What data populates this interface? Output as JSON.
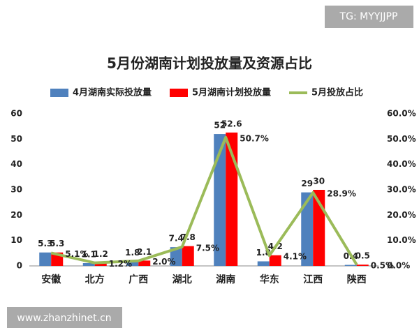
{
  "chart_data": {
    "type": "bar",
    "title": "5月份湖南计划投放量及资源占比",
    "categories": [
      "安徽",
      "北方",
      "广西",
      "湖北",
      "湖南",
      "华东",
      "江西",
      "陕西"
    ],
    "series": [
      {
        "name": "4月湖南实际投放量",
        "color": "#4f81bd",
        "values": [
          5.3,
          1.1,
          1.8,
          7.4,
          52,
          1.8,
          29,
          0.4
        ]
      },
      {
        "name": "5月湖南计划投放量",
        "color": "#ff0000",
        "values": [
          5.3,
          1.2,
          2.1,
          7.8,
          52.6,
          4.2,
          30,
          0.5
        ]
      },
      {
        "name": "5月投放占比",
        "color": "#9bbb59",
        "type": "line",
        "axis": "y2",
        "values": [
          5.1,
          1.2,
          2.0,
          7.5,
          50.7,
          4.1,
          28.9,
          0.5
        ],
        "value_labels": [
          "5.1%",
          "1.2%",
          "2.0%",
          "7.5%",
          "50.7%",
          "4.1%",
          "28.9%",
          "0.5%"
        ]
      }
    ],
    "ylim": [
      0,
      60
    ],
    "yticks": [
      0,
      10,
      20,
      30,
      40,
      50,
      60
    ],
    "y2lim": [
      0,
      60
    ],
    "y2ticks": [
      {
        "value": 0,
        "label": "0.0%"
      },
      {
        "value": 10,
        "label": "10.0%"
      },
      {
        "value": 20,
        "label": "20.0%"
      },
      {
        "value": 30,
        "label": "30.0%"
      },
      {
        "value": 40,
        "label": "40.0%"
      },
      {
        "value": 50,
        "label": "50.0%"
      },
      {
        "value": 60,
        "label": "60.0%"
      }
    ]
  },
  "watermarks": {
    "top": "TG: MYYJJPP",
    "bottom": "www.zhanzhinet.cn"
  }
}
